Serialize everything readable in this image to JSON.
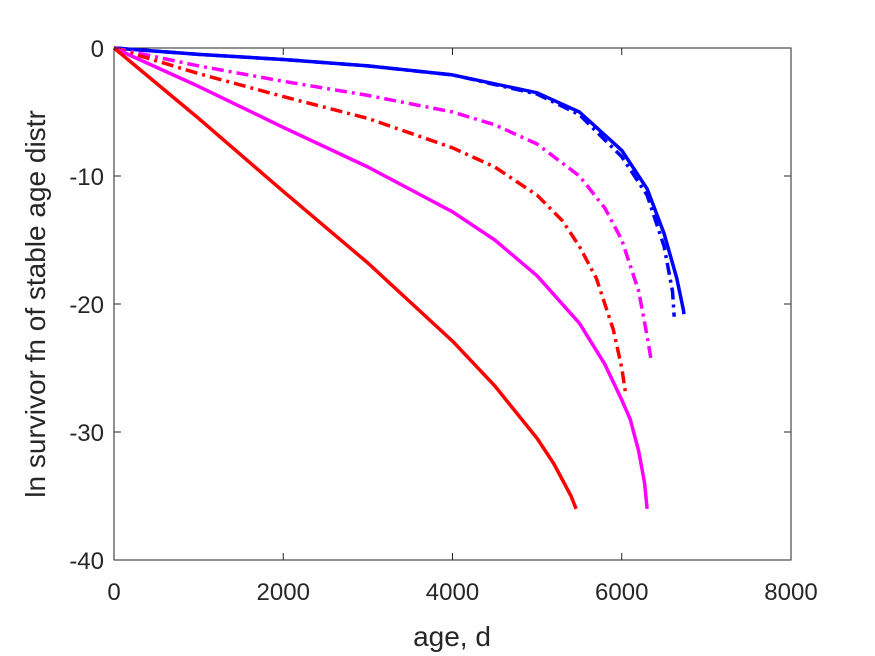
{
  "chart_data": {
    "type": "line",
    "title": "",
    "xlabel": "age, d",
    "ylabel": "ln survivor fn of stable age distr",
    "xlim": [
      0,
      8000
    ],
    "ylim": [
      -40,
      0
    ],
    "xticks": [
      0,
      2000,
      4000,
      6000,
      8000
    ],
    "yticks": [
      0,
      -10,
      -20,
      -30,
      -40
    ],
    "xtick_labels": [
      "0",
      "2000",
      "4000",
      "6000",
      "8000"
    ],
    "ytick_labels": [
      "0",
      "-10",
      "-20",
      "-30",
      "-40"
    ],
    "grid": false,
    "legend": "none",
    "series": [
      {
        "color": "#0000ff",
        "style": "solid",
        "x": [
          0,
          1000,
          2000,
          3000,
          4000,
          5000,
          5500,
          6000,
          6300,
          6500,
          6650,
          6730,
          6735
        ],
        "y": [
          0,
          -0.5,
          -0.9,
          -1.4,
          -2.1,
          -3.5,
          -5.0,
          -8.0,
          -11.0,
          -14.5,
          -18.0,
          -20.5,
          -20.8
        ]
      },
      {
        "color": "#0000ff",
        "style": "dashdot",
        "x": [
          0,
          1000,
          2000,
          3000,
          4000,
          5000,
          5500,
          6000,
          6300,
          6500,
          6600,
          6620
        ],
        "y": [
          0,
          -0.5,
          -0.9,
          -1.4,
          -2.1,
          -3.6,
          -5.2,
          -8.5,
          -11.5,
          -15.5,
          -19.0,
          -21.0
        ]
      },
      {
        "color": "#ff00ff",
        "style": "dashdot",
        "x": [
          0,
          500,
          1000,
          2000,
          3000,
          4000,
          4500,
          5000,
          5500,
          5800,
          6000,
          6200,
          6300,
          6350
        ],
        "y": [
          0,
          -0.7,
          -1.4,
          -2.6,
          -3.7,
          -5.0,
          -6.0,
          -7.5,
          -10.0,
          -12.5,
          -15.0,
          -19.0,
          -22.5,
          -24.5
        ]
      },
      {
        "color": "#ff0000",
        "style": "dashdot",
        "x": [
          0,
          500,
          1000,
          2000,
          3000,
          4000,
          4500,
          5000,
          5300,
          5500,
          5700,
          5900,
          6000,
          6050
        ],
        "y": [
          0,
          -1.0,
          -2.0,
          -3.8,
          -5.5,
          -7.8,
          -9.3,
          -11.5,
          -13.5,
          -15.5,
          -18.0,
          -22.0,
          -25.0,
          -27.2
        ]
      },
      {
        "color": "#ff00ff",
        "style": "solid",
        "x": [
          0,
          1000,
          2000,
          3000,
          4000,
          4500,
          5000,
          5500,
          5800,
          6000,
          6100,
          6200,
          6270,
          6300
        ],
        "y": [
          0,
          -3.0,
          -6.2,
          -9.3,
          -12.8,
          -15.0,
          -17.8,
          -21.5,
          -24.7,
          -27.5,
          -29.0,
          -31.5,
          -34.0,
          -36.0
        ]
      },
      {
        "color": "#ff0000",
        "style": "solid",
        "x": [
          0,
          1000,
          2000,
          3000,
          4000,
          4500,
          5000,
          5200,
          5400,
          5460
        ],
        "y": [
          0,
          -5.5,
          -11.2,
          -16.8,
          -22.9,
          -26.4,
          -30.5,
          -32.5,
          -35.0,
          -36.0
        ]
      }
    ]
  }
}
